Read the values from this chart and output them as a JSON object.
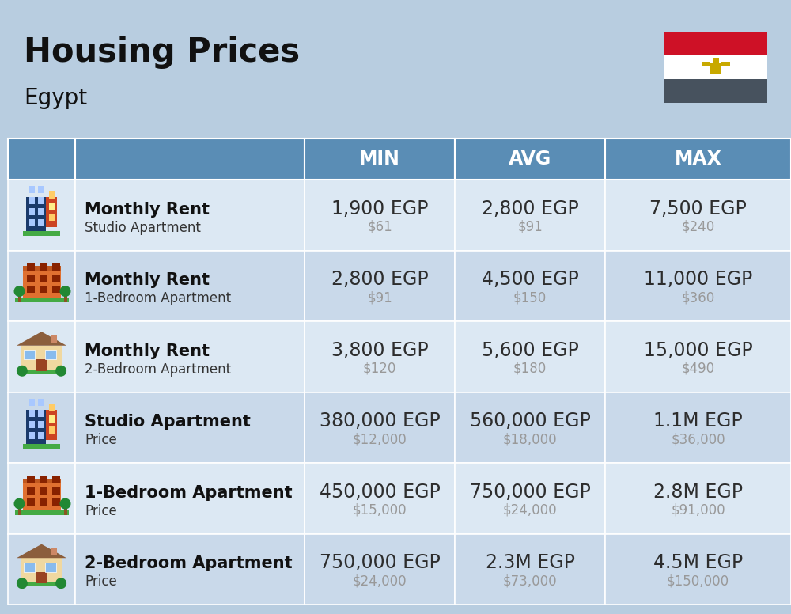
{
  "title": "Housing Prices",
  "subtitle": "Egypt",
  "background_color": "#b8cde0",
  "header_bg_color": "#5a8db5",
  "header_text_color": "#FFFFFF",
  "row_bg_colors": [
    "#dce8f3",
    "#c9d9ea"
  ],
  "col_header_labels": [
    "MIN",
    "AVG",
    "MAX"
  ],
  "rows": [
    {
      "icon": "blue_office",
      "label_bold": "Monthly Rent",
      "label_sub": "Studio Apartment",
      "min_egp": "1,900 EGP",
      "min_usd": "$61",
      "avg_egp": "2,800 EGP",
      "avg_usd": "$91",
      "max_egp": "7,500 EGP",
      "max_usd": "$240"
    },
    {
      "icon": "orange_apartment",
      "label_bold": "Monthly Rent",
      "label_sub": "1-Bedroom Apartment",
      "min_egp": "2,800 EGP",
      "min_usd": "$91",
      "avg_egp": "4,500 EGP",
      "avg_usd": "$150",
      "max_egp": "11,000 EGP",
      "max_usd": "$360"
    },
    {
      "icon": "tan_house",
      "label_bold": "Monthly Rent",
      "label_sub": "2-Bedroom Apartment",
      "min_egp": "3,800 EGP",
      "min_usd": "$120",
      "avg_egp": "5,600 EGP",
      "avg_usd": "$180",
      "max_egp": "15,000 EGP",
      "max_usd": "$490"
    },
    {
      "icon": "blue_office",
      "label_bold": "Studio Apartment",
      "label_sub": "Price",
      "min_egp": "380,000 EGP",
      "min_usd": "$12,000",
      "avg_egp": "560,000 EGP",
      "avg_usd": "$18,000",
      "max_egp": "1.1M EGP",
      "max_usd": "$36,000"
    },
    {
      "icon": "orange_apartment",
      "label_bold": "1-Bedroom Apartment",
      "label_sub": "Price",
      "min_egp": "450,000 EGP",
      "min_usd": "$15,000",
      "avg_egp": "750,000 EGP",
      "avg_usd": "$24,000",
      "max_egp": "2.8M EGP",
      "max_usd": "$91,000"
    },
    {
      "icon": "tan_house",
      "label_bold": "2-Bedroom Apartment",
      "label_sub": "Price",
      "min_egp": "750,000 EGP",
      "min_usd": "$24,000",
      "avg_egp": "2.3M EGP",
      "avg_usd": "$73,000",
      "max_egp": "4.5M EGP",
      "max_usd": "$150,000"
    }
  ],
  "egp_fontsize": 17,
  "usd_fontsize": 12,
  "label_bold_fontsize": 15,
  "label_sub_fontsize": 12,
  "title_fontsize": 30,
  "subtitle_fontsize": 20,
  "header_fontsize": 17,
  "egp_color": "#2d2d2d",
  "usd_color": "#999999",
  "label_bold_color": "#111111",
  "label_sub_color": "#333333",
  "flag_red": "#CE1126",
  "flag_white": "#FFFFFF",
  "flag_black": "#47525e",
  "flag_gold": "#C8A900"
}
